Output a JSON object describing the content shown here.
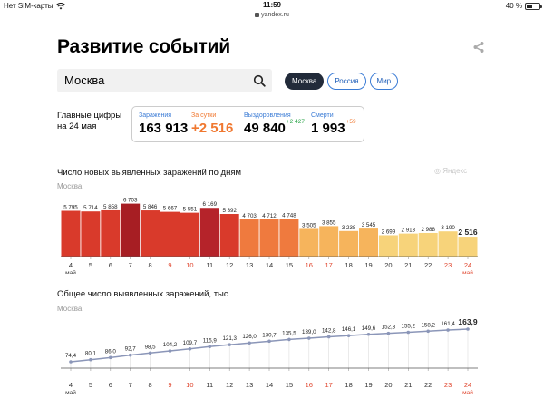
{
  "status_bar": {
    "carrier": "Нет SIM-карты",
    "time": "11:59",
    "battery": "40 %",
    "battery_level": 0.4,
    "url": "yandex.ru"
  },
  "page": {
    "title": "Развитие событий",
    "share_icon": "share-icon"
  },
  "search": {
    "value": "Москва",
    "icon": "search-icon"
  },
  "region_tabs": [
    {
      "label": "Москва",
      "active": true
    },
    {
      "label": "Россия",
      "active": false
    },
    {
      "label": "Мир",
      "active": false
    }
  ],
  "summary": {
    "label": "Главные цифры на 24 мая",
    "cards": [
      {
        "label": "Заражения",
        "value": "163 913",
        "delta": ""
      },
      {
        "label": "За сутки",
        "value": "+2 516",
        "delta": ""
      },
      {
        "label": "Выздоровления",
        "value": "49 840",
        "delta": "+2 427"
      },
      {
        "label": "Смерти",
        "value": "1 993",
        "delta": "+59"
      }
    ]
  },
  "colors": {
    "accent_orange": "#f07830",
    "delta_green": "#25a244",
    "weekend_red": "#e0442c",
    "chip_blue": "#1d5db8"
  },
  "watermark": "Яндекс",
  "chart_data": [
    {
      "type": "bar",
      "title": "Число новых выявленных заражений по дням",
      "subtitle": "Москва",
      "categories": [
        "4",
        "5",
        "6",
        "7",
        "8",
        "9",
        "10",
        "11",
        "12",
        "13",
        "14",
        "15",
        "16",
        "17",
        "18",
        "19",
        "20",
        "21",
        "22",
        "23",
        "24"
      ],
      "category_sublabels": {
        "4": "май",
        "24": "май"
      },
      "weekend_days": [
        "9",
        "10",
        "16",
        "17",
        "23",
        "24"
      ],
      "values": [
        5795,
        5714,
        5858,
        6703,
        5846,
        5667,
        5551,
        6169,
        5392,
        4703,
        4712,
        4748,
        3505,
        3855,
        3238,
        3545,
        2699,
        2913,
        2988,
        3190,
        2516
      ],
      "value_labels": [
        "5 795",
        "5 714",
        "5 858",
        "6 703",
        "5 846",
        "5 667",
        "5 551",
        "6 169",
        "5 392",
        "4 703",
        "4 712",
        "4 748",
        "3 505",
        "3 855",
        "3 238",
        "3 545",
        "2 699",
        "2 913",
        "2 988",
        "3 190",
        "2 516"
      ],
      "bar_colors": [
        "#d93a2b",
        "#d93a2b",
        "#d93a2b",
        "#a71e23",
        "#d93a2b",
        "#d93a2b",
        "#d93a2b",
        "#b5232a",
        "#d93a2b",
        "#ef7a3e",
        "#ef7a3e",
        "#ef7a3e",
        "#f6b45c",
        "#f6b45c",
        "#f6b45c",
        "#f6b45c",
        "#f7d37a",
        "#f7d37a",
        "#f7d37a",
        "#f7d37a",
        "#f7d37a"
      ],
      "ylim": [
        0,
        7000
      ]
    },
    {
      "type": "line",
      "title": "Общее число выявленных заражений, тыс.",
      "subtitle": "Москва",
      "categories": [
        "4",
        "5",
        "6",
        "7",
        "8",
        "9",
        "10",
        "11",
        "12",
        "13",
        "14",
        "15",
        "16",
        "17",
        "18",
        "19",
        "20",
        "21",
        "22",
        "23",
        "24"
      ],
      "category_sublabels": {
        "4": "май",
        "24": "май"
      },
      "weekend_days": [
        "9",
        "10",
        "16",
        "17",
        "23",
        "24"
      ],
      "values": [
        74.4,
        80.1,
        86.0,
        92.7,
        98.5,
        104.2,
        109.7,
        115.9,
        121.3,
        126.0,
        130.7,
        135.5,
        139.0,
        142.8,
        146.1,
        149.6,
        152.3,
        155.2,
        158.2,
        161.4,
        163.9
      ],
      "value_labels": [
        "74,4",
        "80,1",
        "86,0",
        "92,7",
        "98,5",
        "104,2",
        "109,7",
        "115,9",
        "121,3",
        "126,0",
        "130,7",
        "135,5",
        "139,0",
        "142,8",
        "146,1",
        "149,6",
        "152,3",
        "155,2",
        "158,2",
        "161,4",
        "163,9"
      ],
      "line_color": "#8b96b8",
      "ylim": [
        0,
        170
      ]
    }
  ]
}
